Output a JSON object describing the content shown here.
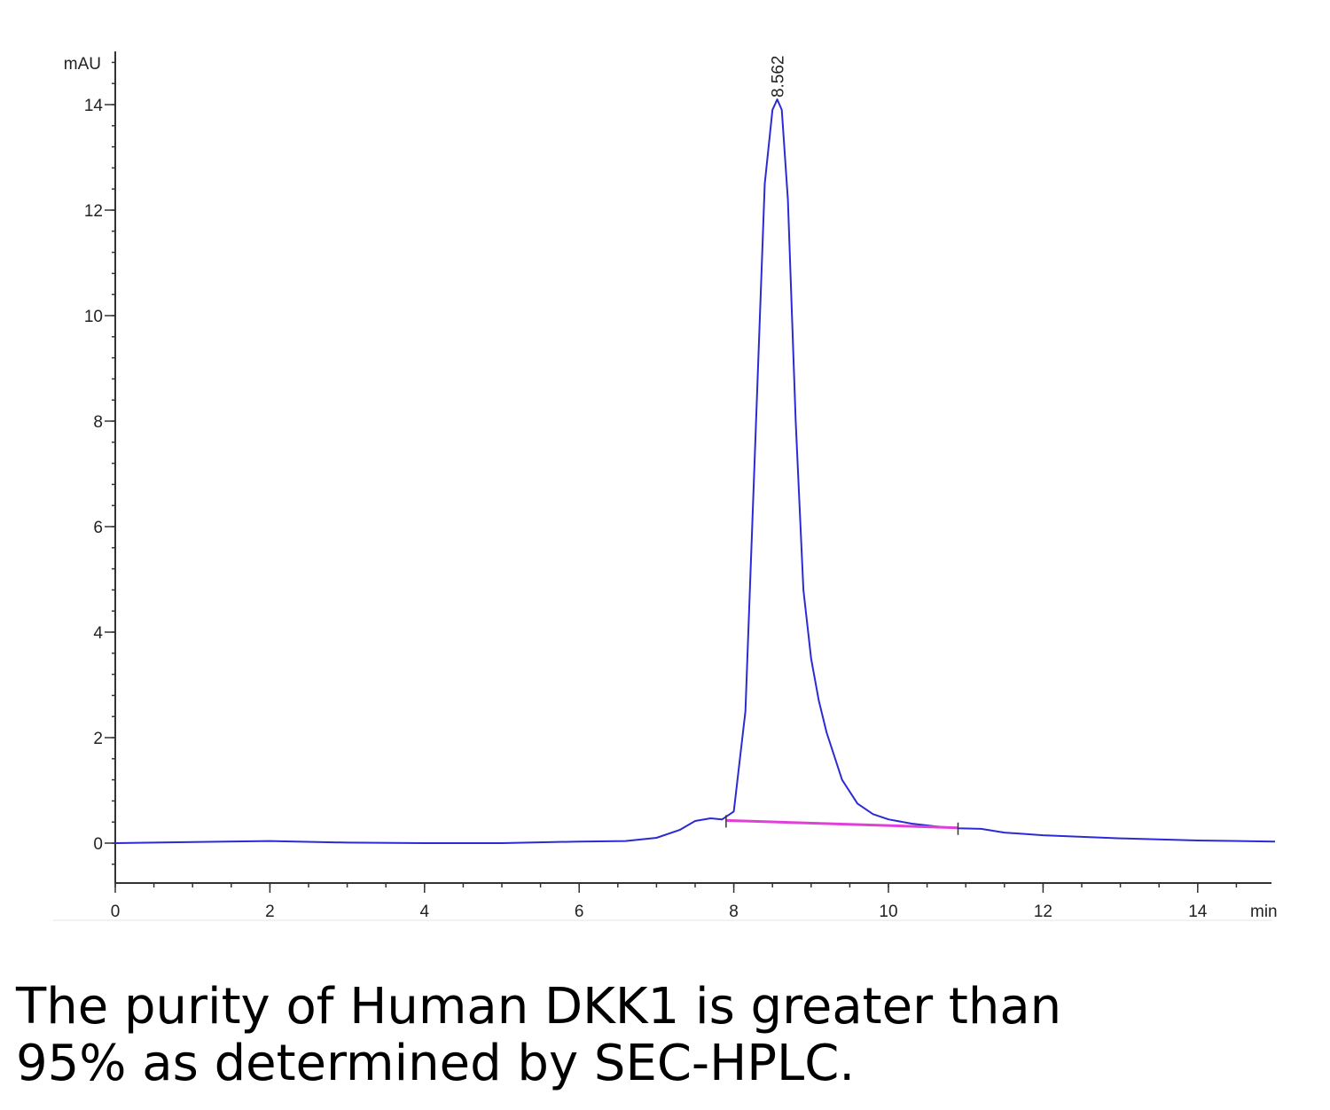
{
  "chart_data": {
    "type": "line",
    "title": "",
    "xlabel": "min",
    "ylabel": "mAU",
    "xlim": [
      0,
      15
    ],
    "ylim": [
      -0.75,
      15
    ],
    "x_ticks": [
      0,
      2,
      4,
      6,
      8,
      10,
      12,
      14
    ],
    "y_ticks": [
      0,
      2,
      4,
      6,
      8,
      10,
      12,
      14
    ],
    "grid": false,
    "peak_label": "8.562",
    "peak_x": 8.562,
    "series": [
      {
        "color": "#2b2bd6",
        "x": [
          0,
          1,
          2,
          3,
          4,
          5,
          6,
          6.6,
          7.0,
          7.3,
          7.5,
          7.7,
          7.85,
          8.0,
          8.15,
          8.3,
          8.4,
          8.5,
          8.562,
          8.62,
          8.7,
          8.8,
          8.9,
          9.0,
          9.1,
          9.2,
          9.4,
          9.6,
          9.8,
          10.0,
          10.3,
          10.6,
          10.9,
          11.2,
          11.5,
          12,
          13,
          14,
          15
        ],
        "y": [
          0.0,
          0.02,
          0.04,
          0.01,
          0.0,
          0.0,
          0.03,
          0.04,
          0.1,
          0.25,
          0.42,
          0.47,
          0.45,
          0.6,
          2.5,
          8.5,
          12.5,
          13.9,
          14.1,
          13.9,
          12.2,
          8.0,
          4.8,
          3.5,
          2.7,
          2.1,
          1.2,
          0.75,
          0.55,
          0.45,
          0.37,
          0.32,
          0.28,
          0.27,
          0.2,
          0.15,
          0.09,
          0.05,
          0.03
        ]
      },
      {
        "color": "#e040d8",
        "x": [
          7.9,
          10.9
        ],
        "y": [
          0.43,
          0.29
        ]
      }
    ]
  },
  "caption": {
    "line1": "The purity of Human DKK1 is greater than",
    "line2": "95% as determined by SEC-HPLC."
  }
}
